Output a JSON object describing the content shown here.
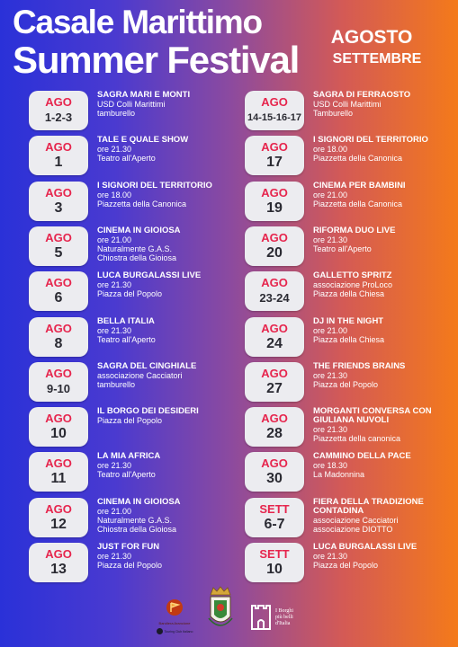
{
  "header": {
    "title_line1": "Casale Marittimo",
    "title_line2": "Summer Festival",
    "month1": "AGOSTO",
    "month2": "SETTEMBRE"
  },
  "left_events": [
    {
      "month": "AGO",
      "day": "1-2-3",
      "name": "SAGRA MARI E MONTI",
      "line1": "USD Colli Marittimi",
      "line2": "tamburello"
    },
    {
      "month": "AGO",
      "day": "1",
      "name": "TALE E QUALE SHOW",
      "line1": "ore 21.30",
      "line2": "Teatro all'Aperto"
    },
    {
      "month": "AGO",
      "day": "3",
      "name": "I SIGNORI DEL TERRITORIO",
      "line1": "ore 18.00",
      "line2": "Piazzetta della Canonica"
    },
    {
      "month": "AGO",
      "day": "5",
      "name": "CINEMA IN GIOIOSA",
      "line1": "ore 21.00",
      "line2": "Naturalmente G.A.S.",
      "line3": "Chiostra della Gioiosa"
    },
    {
      "month": "AGO",
      "day": "6",
      "name": "LUCA BURGALASSI LIVE",
      "line1": "ore 21.30",
      "line2": "Piazza del Popolo"
    },
    {
      "month": "AGO",
      "day": "8",
      "name": "BELLA ITALIA",
      "line1": "ore 21.30",
      "line2": "Teatro all'Aperto"
    },
    {
      "month": "AGO",
      "day": "9-10",
      "name": "SAGRA DEL CINGHIALE",
      "line1": "associazione Cacciatori",
      "line2": "tamburello"
    },
    {
      "month": "AGO",
      "day": "10",
      "name": "IL BORGO DEI DESIDERI",
      "line1": "Piazza del Popolo"
    },
    {
      "month": "AGO",
      "day": "11",
      "name": "LA MIA AFRICA",
      "line1": "ore 21.30",
      "line2": "Teatro all'Aperto"
    },
    {
      "month": "AGO",
      "day": "12",
      "name": "CINEMA IN GIOIOSA",
      "line1": "ore 21.00",
      "line2": "Naturalmente G.A.S.",
      "line3": "Chiostra della Gioiosa"
    },
    {
      "month": "AGO",
      "day": "13",
      "name": "JUST FOR FUN",
      "line1": "ore 21.30",
      "line2": "Piazza del Popolo"
    }
  ],
  "right_events": [
    {
      "month": "AGO",
      "day": "14-15-16-17",
      "name": "SAGRA DI FERRAOSTO",
      "line1": "USD Colli Marittimi",
      "line2": "Tamburello"
    },
    {
      "month": "AGO",
      "day": "17",
      "name": "I SIGNORI DEL TERRITORIO",
      "line1": "ore 18.00",
      "line2": "Piazzetta della Canonica"
    },
    {
      "month": "AGO",
      "day": "19",
      "name": "CINEMA PER BAMBINI",
      "line1": "ore 21.00",
      "line2": "Piazzetta della Canonica"
    },
    {
      "month": "AGO",
      "day": "20",
      "name": "RIFORMA DUO LIVE",
      "line1": "ore 21.30",
      "line2": "Teatro all'Aperto"
    },
    {
      "month": "AGO",
      "day": "23-24",
      "name": "GALLETTO SPRITZ",
      "line1": "associazione ProLoco",
      "line2": "Piazza della Chiesa"
    },
    {
      "month": "AGO",
      "day": "24",
      "name": "DJ IN THE NIGHT",
      "line1": "ore 21.00",
      "line2": "Piazza della Chiesa"
    },
    {
      "month": "AGO",
      "day": "27",
      "name": "THE FRIENDS BRAINS",
      "line1": "ore 21.30",
      "line2": "Piazza del Popolo"
    },
    {
      "month": "AGO",
      "day": "28",
      "name": "MORGANTI CONVERSA CON GIULIANA NUVOLI",
      "line1": "ore 21.30",
      "line2": "Piazzetta della canonica"
    },
    {
      "month": "AGO",
      "day": "30",
      "name": "CAMMINO DELLA PACE",
      "line1": "ore 18.30",
      "line2": "La Madonnina"
    },
    {
      "month": "SETT",
      "day": "6-7",
      "name": "FIERA DELLA TRADIZIONE CONTADINA",
      "line1": "associazione Cacciatori",
      "line2": "associazione DIOTTO"
    },
    {
      "month": "SETT",
      "day": "10",
      "name": "LUCA BURGALASSI LIVE",
      "line1": "ore 21.30",
      "line2": "Piazza del Popolo"
    }
  ],
  "footer": {
    "logo1_text": "Bandiera Arancione",
    "logo1_sub": "Touring Club Italiano",
    "logo3_line1": "I Borghi",
    "logo3_line2": "più belli",
    "logo3_line3": "d'Italia"
  },
  "colors": {
    "left": "#2a31d8",
    "right": "#f47a1a",
    "month_red": "#e6254d",
    "badge_bg": "#ececf0"
  }
}
